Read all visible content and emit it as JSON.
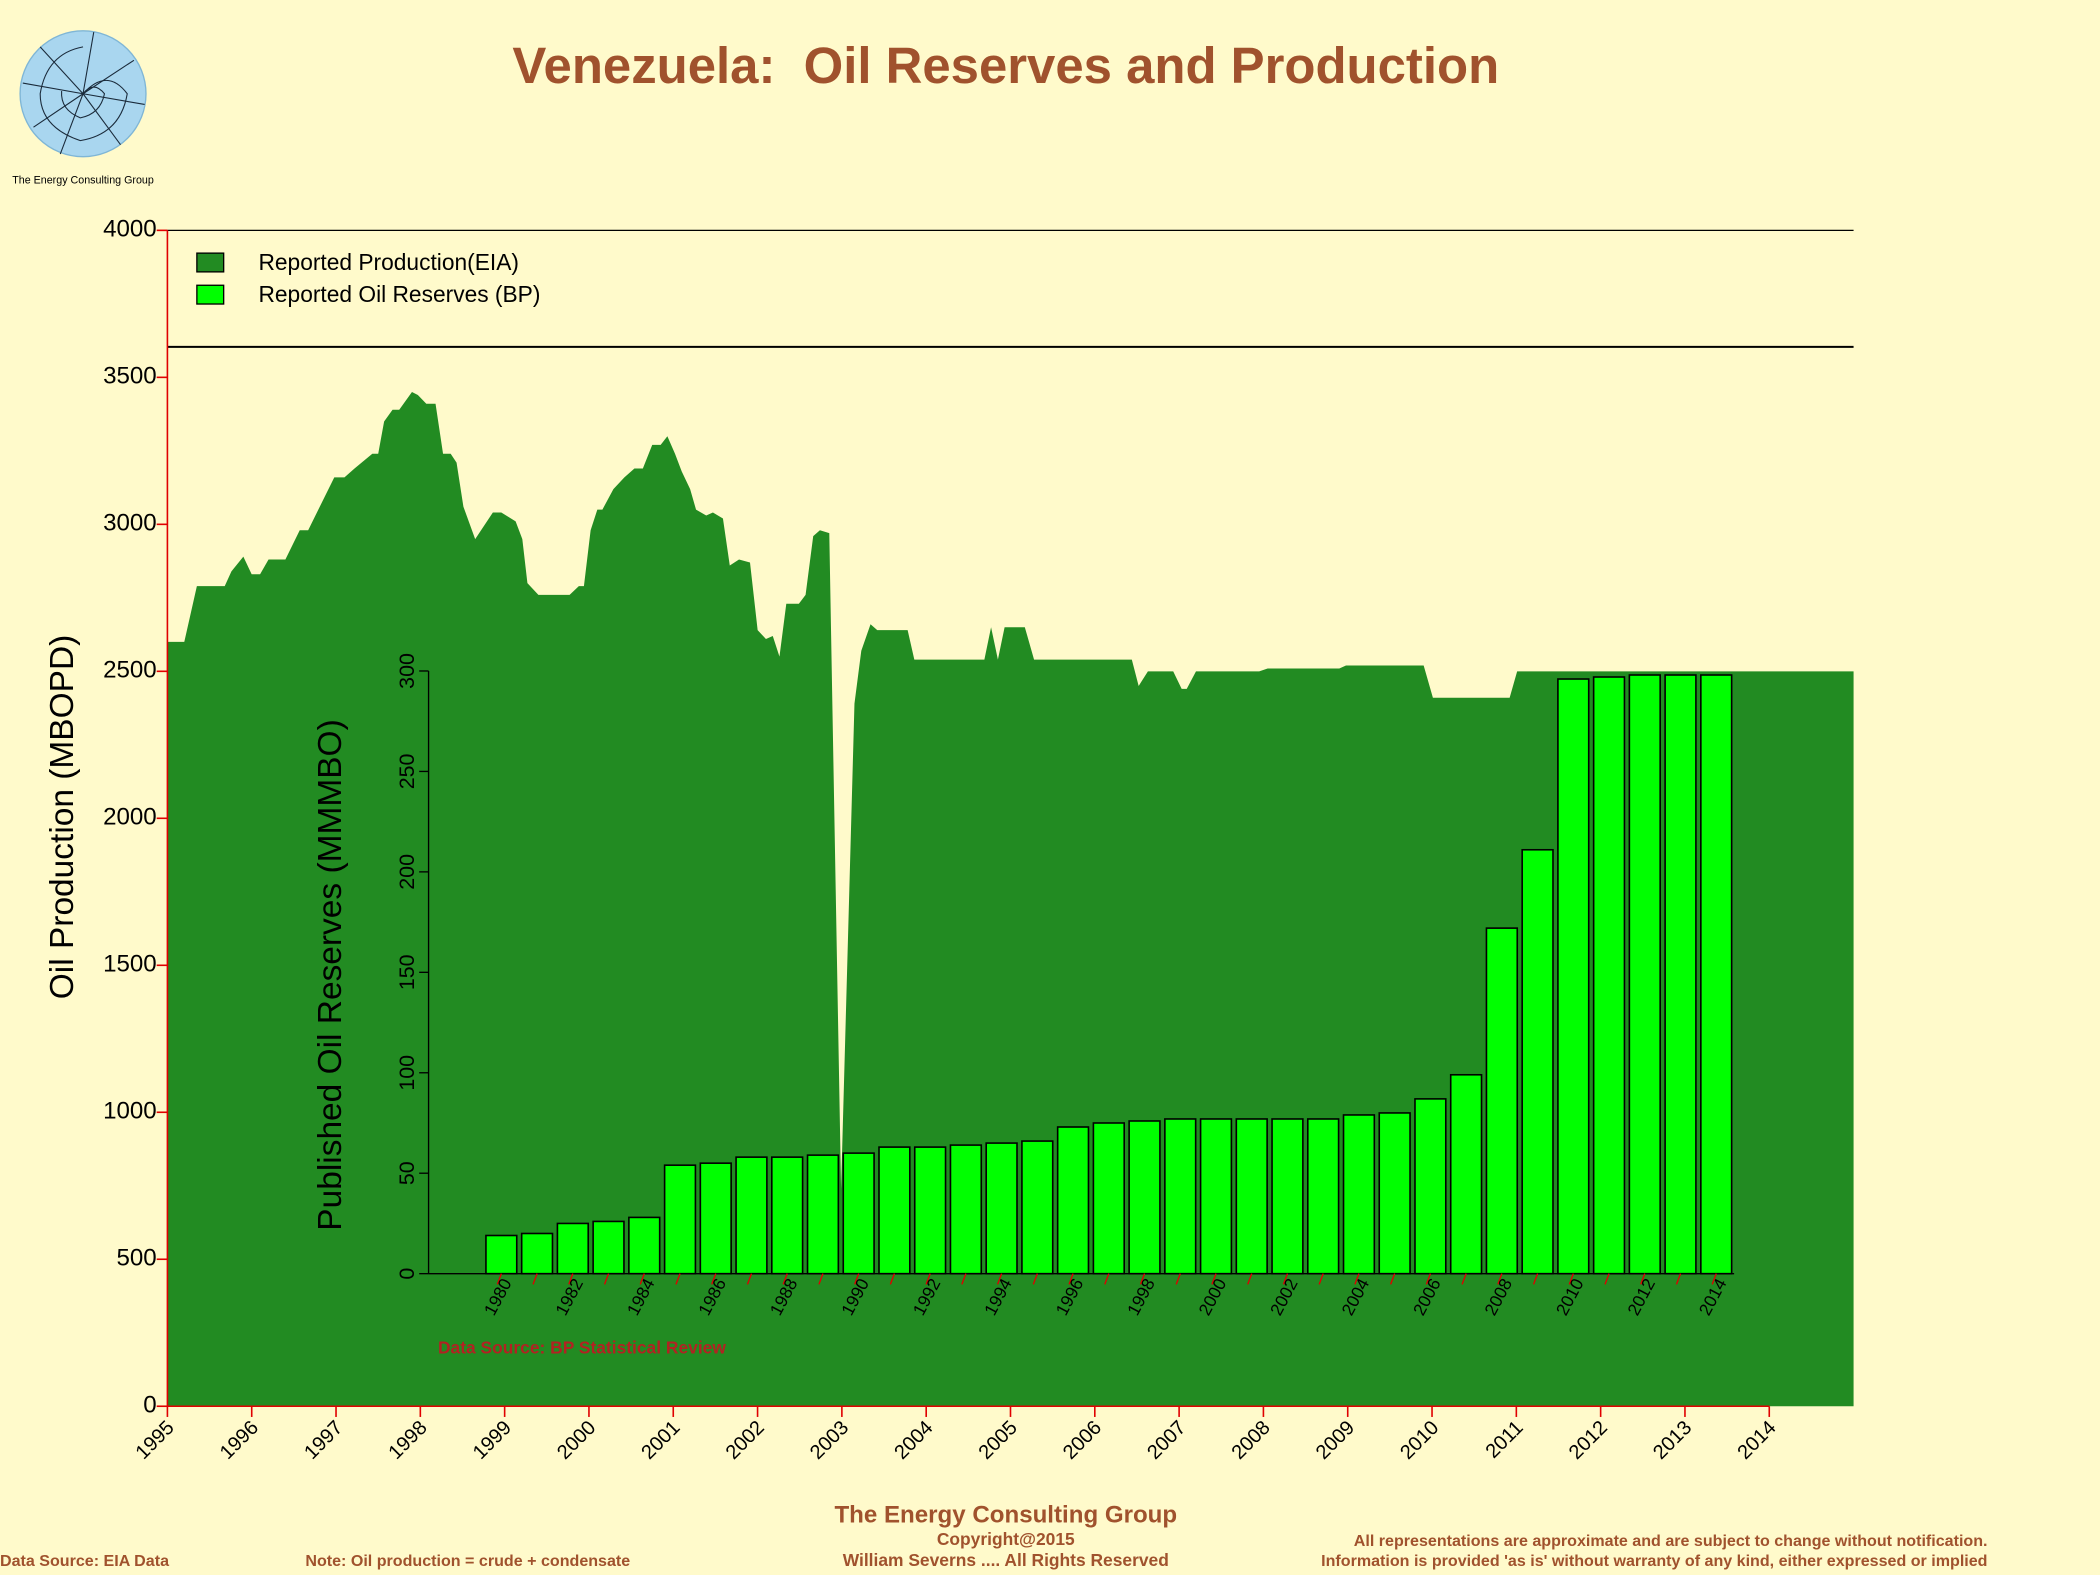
{
  "header": {
    "logo_text": "The Energy Consulting Group"
  },
  "chart_data": [
    {
      "type": "area",
      "title": "Venezuela:  Oil Reserves and Production",
      "ylabel": "Oil Production (MBOPD)",
      "x": [
        1995.0,
        1995.2,
        1995.35,
        1995.68,
        1995.76,
        1995.9,
        1996.0,
        1996.1,
        1996.2,
        1996.4,
        1996.57,
        1996.67,
        1996.98,
        1997.1,
        1997.22,
        1997.43,
        1997.5,
        1997.57,
        1997.67,
        1997.75,
        1997.9,
        1997.97,
        1998.07,
        1998.18,
        1998.27,
        1998.36,
        1998.43,
        1998.51,
        1998.65,
        1998.86,
        1998.96,
        1999.13,
        1999.21,
        1999.27,
        1999.4,
        1999.77,
        1999.88,
        1999.94,
        2000.02,
        2000.1,
        2000.16,
        2000.29,
        2000.42,
        2000.54,
        2000.64,
        2000.75,
        2000.85,
        2000.93,
        2001.02,
        2001.1,
        2001.2,
        2001.27,
        2001.39,
        2001.47,
        2001.59,
        2001.67,
        2001.78,
        2001.91,
        2002.0,
        2002.1,
        2002.18,
        2002.26,
        2002.34,
        2002.49,
        2002.57,
        2002.66,
        2002.74,
        2002.85,
        2002.99,
        2003.15,
        2003.23,
        2003.34,
        2003.42,
        2003.78,
        2003.86,
        2004.69,
        2004.77,
        2004.85,
        2004.93,
        2005.17,
        2005.28,
        2006.44,
        2006.52,
        2006.63,
        2006.93,
        2007.03,
        2007.09,
        2007.2,
        2007.95,
        2008.05,
        2008.9,
        2008.98,
        2009.9,
        2010.01,
        2010.92,
        2011.01,
        2015
      ],
      "series": [
        {
          "name": "Reported Production(EIA)",
          "color": "#228b22",
          "values": [
            2600,
            2600,
            2790,
            2790,
            2840,
            2890,
            2830,
            2830,
            2880,
            2880,
            2980,
            2980,
            3160,
            3160,
            3190,
            3240,
            3240,
            3350,
            3390,
            3390,
            3450,
            3440,
            3410,
            3410,
            3240,
            3240,
            3210,
            3060,
            2950,
            3040,
            3040,
            3010,
            2950,
            2800,
            2760,
            2760,
            2790,
            2790,
            2980,
            3050,
            3050,
            3120,
            3160,
            3190,
            3190,
            3270,
            3270,
            3300,
            3240,
            3180,
            3120,
            3050,
            3030,
            3040,
            3020,
            2860,
            2880,
            2870,
            2640,
            2610,
            2620,
            2550,
            2730,
            2730,
            2760,
            2960,
            2980,
            2970,
            740,
            2390,
            2570,
            2660,
            2640,
            2640,
            2540,
            2540,
            2650,
            2540,
            2650,
            2650,
            2540,
            2540,
            2450,
            2500,
            2500,
            2440,
            2440,
            2500,
            2500,
            2510,
            2510,
            2520,
            2520,
            2410,
            2410,
            2500,
            2500
          ]
        }
      ],
      "xlim": [
        1995,
        2015
      ],
      "xticks": [
        1995,
        1996,
        1997,
        1998,
        1999,
        2000,
        2001,
        2002,
        2003,
        2004,
        2005,
        2006,
        2007,
        2008,
        2009,
        2010,
        2011,
        2012,
        2013,
        2014
      ],
      "ylim": [
        0,
        4000
      ],
      "yticks": [
        0,
        500,
        1000,
        1500,
        2000,
        2500,
        3000,
        3500,
        4000
      ],
      "legend": "top-left",
      "grid": false
    },
    {
      "type": "bar",
      "ylabel": "Published Oil Reserves (MMMBO)",
      "annotation": "Data Source: BP Statistical Review",
      "categories": [
        "1980",
        null,
        "1982",
        null,
        "1984",
        null,
        "1986",
        null,
        "1988",
        null,
        "1990",
        null,
        "1992",
        null,
        "1994",
        null,
        "1996",
        null,
        "1998",
        null,
        "2000",
        null,
        "2002",
        null,
        "2004",
        null,
        "2006",
        null,
        "2008",
        null,
        "2010",
        null,
        "2012",
        null,
        "2014"
      ],
      "series": [
        {
          "name": "Reported Oil Reserves (BP)",
          "color": "#00ff00",
          "values": [
            19,
            20,
            25,
            26,
            28,
            54,
            55,
            58,
            58,
            59,
            60,
            63,
            63,
            64,
            65,
            66,
            73,
            75,
            76,
            77,
            77,
            77,
            77,
            77,
            79,
            80,
            87,
            99,
            172,
            211,
            296,
            297,
            298,
            298,
            298
          ]
        }
      ],
      "ylim": [
        0,
        300
      ],
      "yticks": [
        0,
        50,
        100,
        150,
        200,
        250,
        300
      ]
    }
  ],
  "footer": {
    "company": "The Energy Consulting Group",
    "copyright": "Copyright@2015",
    "rights": "William Severns .... All Rights Reserved",
    "source": "Data Source: EIA Data",
    "note": "Note: Oil production = crude + condensate",
    "disclaimer1": "All representations are approximate and are subject to change without notification.",
    "disclaimer2": "Information is provided 'as is' without warranty of any kind, either expressed or implied"
  }
}
